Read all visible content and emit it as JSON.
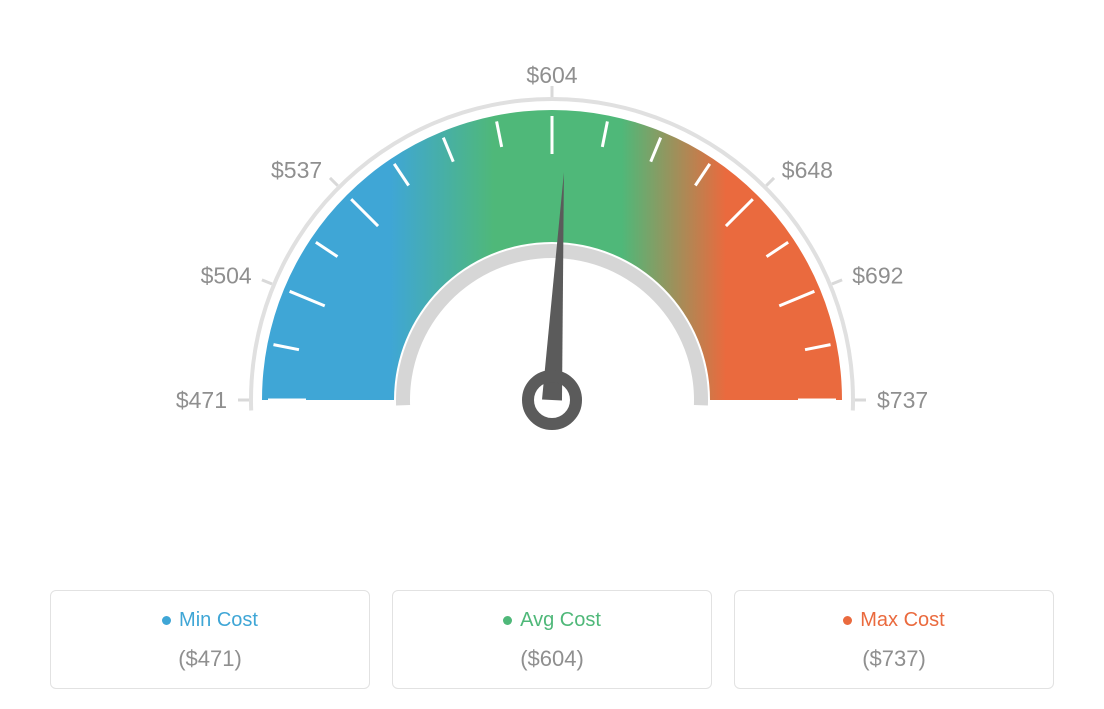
{
  "gauge": {
    "type": "gauge",
    "min": 471,
    "avg": 604,
    "max": 737,
    "ticks": [
      {
        "value": 471,
        "label": "$471",
        "angle": 180
      },
      {
        "value": 504,
        "label": "$504",
        "angle": 157.5
      },
      {
        "value": 537,
        "label": "$537",
        "angle": 135
      },
      {
        "value": 604,
        "label": "$604",
        "angle": 90
      },
      {
        "value": 648,
        "label": "$648",
        "angle": 45
      },
      {
        "value": 692,
        "label": "$692",
        "angle": 22.5
      },
      {
        "value": 737,
        "label": "$737",
        "angle": 0
      }
    ],
    "label_radius": 325,
    "arc_outer_r": 290,
    "arc_inner_r": 158,
    "rim_outer_r": 302,
    "rim_inner_r": 148,
    "rim_color": "#e0e0e0",
    "rim_inner_color": "#d6d6d6",
    "colors": {
      "min": "#3fa6d6",
      "avg": "#4fb879",
      "max": "#ea6a3e"
    },
    "needle_color": "#5b5b5b",
    "needle_angle": 87,
    "background": "#ffffff",
    "tick_color": "#ffffff",
    "label_color": "#8f8f8f",
    "label_fontsize": 23
  },
  "cards": [
    {
      "label": "Min Cost",
      "value": "($471)",
      "color": "#3fa6d6"
    },
    {
      "label": "Avg Cost",
      "value": "($604)",
      "color": "#4fb879"
    },
    {
      "label": "Max Cost",
      "value": "($737)",
      "color": "#ea6a3e"
    }
  ]
}
